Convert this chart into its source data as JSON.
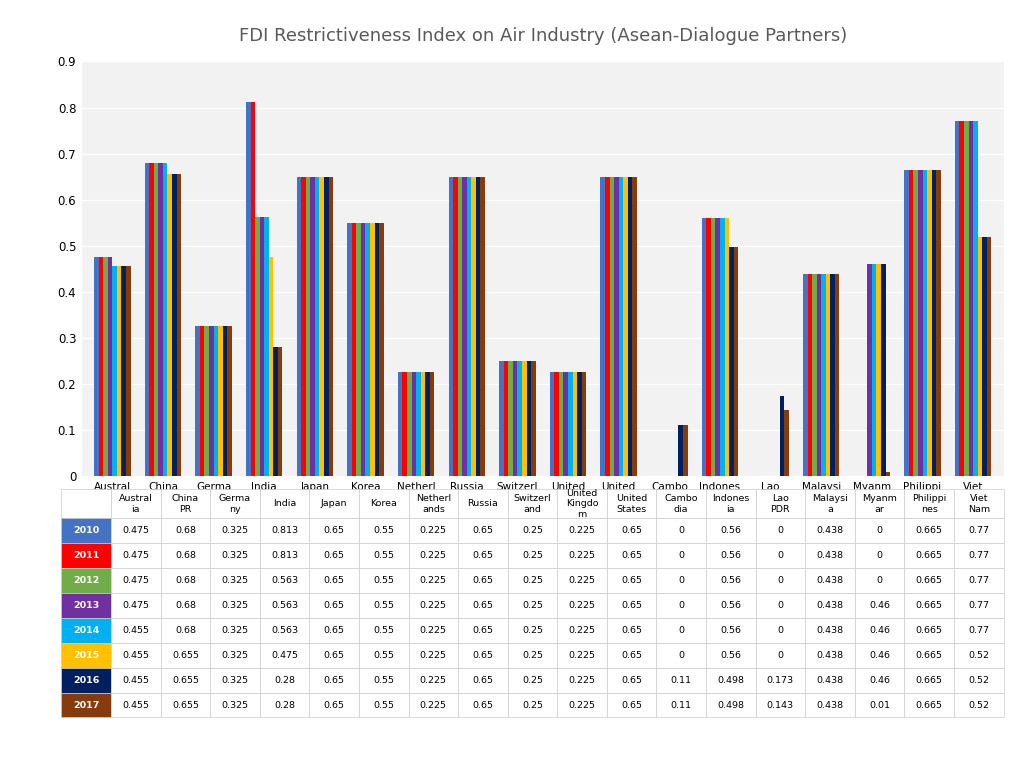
{
  "title": "FDI Restrictiveness Index on Air Industry (Asean-Dialogue Partners)",
  "categories": [
    "Austral\nia",
    "China\nPR",
    "Germa\nny",
    "India",
    "Japan",
    "Korea",
    "Netherl\nands",
    "Russia",
    "Switzerl\nand",
    "United\nKingdo\nm",
    "United\nStates",
    "Cambo\ndia",
    "Indones\nia",
    "Lao\nPDR",
    "Malaysi\na",
    "Myanm\nar",
    "Philippi\nnes",
    "Viet\nNam"
  ],
  "years": [
    "2010",
    "2011",
    "2012",
    "2013",
    "2014",
    "2015",
    "2016",
    "2017"
  ],
  "data": {
    "2010": [
      0.475,
      0.68,
      0.325,
      0.813,
      0.65,
      0.55,
      0.225,
      0.65,
      0.25,
      0.225,
      0.65,
      0,
      0.56,
      0,
      0.438,
      0,
      0.665,
      0.77
    ],
    "2011": [
      0.475,
      0.68,
      0.325,
      0.813,
      0.65,
      0.55,
      0.225,
      0.65,
      0.25,
      0.225,
      0.65,
      0,
      0.56,
      0,
      0.438,
      0,
      0.665,
      0.77
    ],
    "2012": [
      0.475,
      0.68,
      0.325,
      0.563,
      0.65,
      0.55,
      0.225,
      0.65,
      0.25,
      0.225,
      0.65,
      0,
      0.56,
      0,
      0.438,
      0,
      0.665,
      0.77
    ],
    "2013": [
      0.475,
      0.68,
      0.325,
      0.563,
      0.65,
      0.55,
      0.225,
      0.65,
      0.25,
      0.225,
      0.65,
      0,
      0.56,
      0,
      0.438,
      0.46,
      0.665,
      0.77
    ],
    "2014": [
      0.455,
      0.68,
      0.325,
      0.563,
      0.65,
      0.55,
      0.225,
      0.65,
      0.25,
      0.225,
      0.65,
      0,
      0.56,
      0,
      0.438,
      0.46,
      0.665,
      0.77
    ],
    "2015": [
      0.455,
      0.655,
      0.325,
      0.475,
      0.65,
      0.55,
      0.225,
      0.65,
      0.25,
      0.225,
      0.65,
      0,
      0.56,
      0,
      0.438,
      0.46,
      0.665,
      0.52
    ],
    "2016": [
      0.455,
      0.655,
      0.325,
      0.28,
      0.65,
      0.55,
      0.225,
      0.65,
      0.25,
      0.225,
      0.65,
      0.11,
      0.498,
      0.173,
      0.438,
      0.46,
      0.665,
      0.52
    ],
    "2017": [
      0.455,
      0.655,
      0.325,
      0.28,
      0.65,
      0.55,
      0.225,
      0.65,
      0.25,
      0.225,
      0.65,
      0.11,
      0.498,
      0.143,
      0.438,
      0.01,
      0.665,
      0.52
    ]
  },
  "colors": [
    "#4472C4",
    "#FF0000",
    "#70AD47",
    "#7030A0",
    "#00B0F0",
    "#FFC000",
    "#002060",
    "#843C0C"
  ],
  "ylim": [
    0,
    0.9
  ],
  "yticks": [
    0,
    0.1,
    0.2,
    0.3,
    0.4,
    0.5,
    0.6,
    0.7,
    0.8,
    0.9
  ],
  "background_color": "#FFFFFF",
  "plot_background": "#F2F2F2",
  "grid_color": "#FFFFFF",
  "title_fontsize": 13,
  "tick_fontsize": 7.5,
  "legend_fontsize": 8,
  "table_fontsize": 6.8
}
